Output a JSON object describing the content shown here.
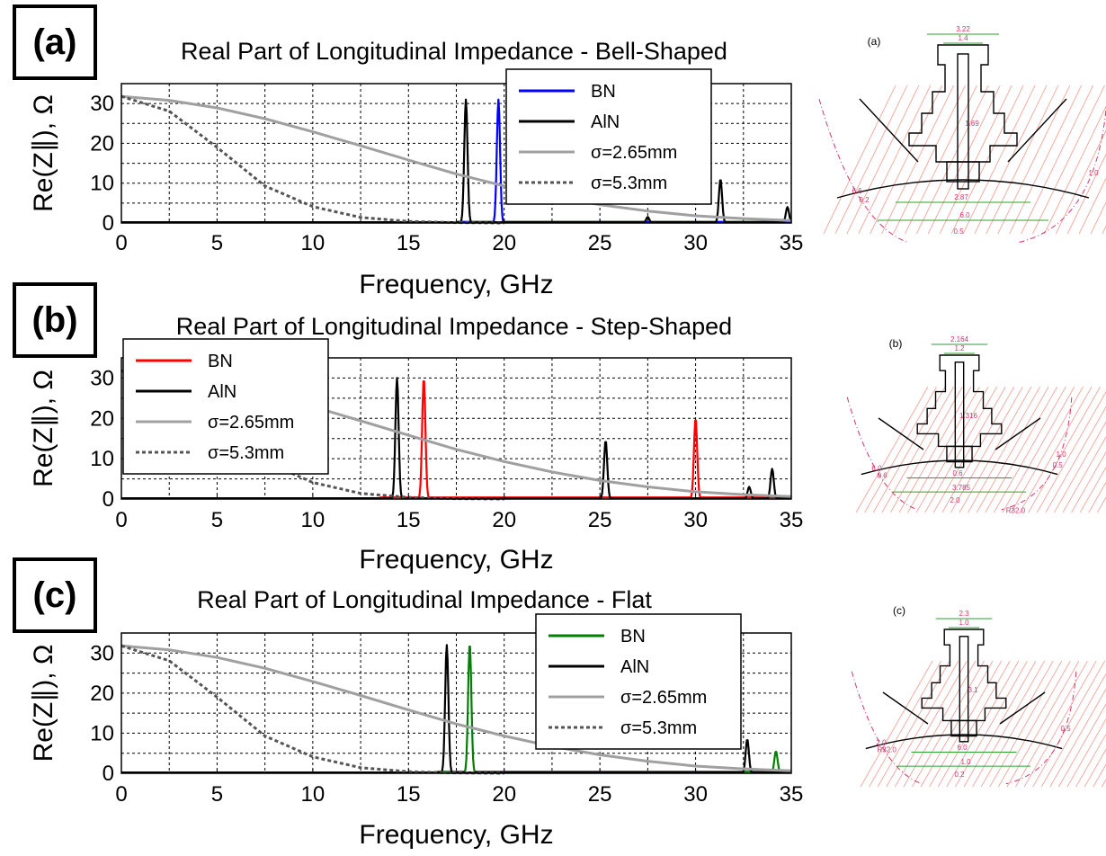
{
  "chart_data": [
    {
      "type": "line",
      "panel_label": "(a)",
      "title": "Real Part of Longitudinal Impedance - Bell-Shaped",
      "xlabel": "Frequency, GHz",
      "ylabel": "Re(Z∥), Ω",
      "xlim": [
        0,
        35
      ],
      "ylim": [
        0,
        35
      ],
      "xticks": [
        0,
        5,
        10,
        15,
        20,
        25,
        30,
        35
      ],
      "yticks": [
        0,
        10,
        20,
        30
      ],
      "grid": true,
      "legend_position": "top-right",
      "legend": [
        "BN",
        "AlN",
        "σ=2.65mm",
        "σ=5.3mm"
      ],
      "series": [
        {
          "name": "BN",
          "color": "#0000ff",
          "style": "solid",
          "peaks": [
            {
              "f": 19.7,
              "h": 31
            }
          ],
          "baseline": 0.3,
          "range": [
            17.5,
            35
          ]
        },
        {
          "name": "AlN",
          "color": "#000000",
          "style": "solid",
          "peaks": [
            {
              "f": 18.0,
              "h": 31
            },
            {
              "f": 27.5,
              "h": 1.5
            },
            {
              "f": 31.3,
              "h": 11
            },
            {
              "f": 34.8,
              "h": 4
            }
          ],
          "baseline": 0.2,
          "range": [
            0,
            35
          ]
        },
        {
          "name": "σ=2.65mm",
          "color": "#a0a0a0",
          "style": "solid",
          "x": [
            0,
            2.5,
            5,
            7.5,
            10,
            12.5,
            15,
            17.5,
            20,
            22.5,
            25,
            27.5,
            30,
            32.5,
            35
          ],
          "y": [
            31.8,
            30.8,
            28.9,
            26.2,
            22.9,
            19.4,
            15.8,
            12.3,
            9.3,
            6.7,
            4.6,
            3.0,
            1.8,
            1.1,
            0.6
          ]
        },
        {
          "name": "σ=5.3mm",
          "color": "#555555",
          "style": "dotted",
          "x": [
            0,
            2.5,
            5,
            7.5,
            10,
            12.5,
            15,
            17.5,
            20
          ],
          "y": [
            31.8,
            28.1,
            19.0,
            9.3,
            4.1,
            1.4,
            0.4,
            0.1,
            0.0
          ]
        }
      ]
    },
    {
      "type": "line",
      "panel_label": "(b)",
      "title": "Real Part of Longitudinal Impedance - Step-Shaped",
      "xlabel": "Frequency, GHz",
      "ylabel": "Re(Z∥), Ω",
      "xlim": [
        0,
        35
      ],
      "ylim": [
        0,
        35
      ],
      "xticks": [
        0,
        5,
        10,
        15,
        20,
        25,
        30,
        35
      ],
      "yticks": [
        0,
        10,
        20,
        30
      ],
      "grid": true,
      "legend_position": "top-left",
      "legend": [
        "BN",
        "AlN",
        "σ=2.65mm",
        "σ=5.3mm"
      ],
      "series": [
        {
          "name": "BN",
          "color": "#ff0000",
          "style": "solid",
          "peaks": [
            {
              "f": 15.8,
              "h": 30
            },
            {
              "f": 30.0,
              "h": 20
            }
          ],
          "baseline": 0.4,
          "range": [
            13.5,
            35
          ]
        },
        {
          "name": "AlN",
          "color": "#000000",
          "style": "solid",
          "peaks": [
            {
              "f": 14.4,
              "h": 30
            },
            {
              "f": 25.3,
              "h": 14.5
            },
            {
              "f": 32.8,
              "h": 3
            },
            {
              "f": 34.0,
              "h": 7.5
            }
          ],
          "baseline": 0.2,
          "range": [
            0,
            35
          ]
        },
        {
          "name": "σ=2.65mm",
          "color": "#a0a0a0",
          "style": "solid",
          "x": [
            0,
            2.5,
            5,
            7.5,
            10,
            12.5,
            15,
            17.5,
            20,
            22.5,
            25,
            27.5,
            30,
            32.5,
            35
          ],
          "y": [
            31.8,
            30.8,
            28.9,
            26.2,
            22.9,
            19.4,
            15.8,
            12.3,
            9.3,
            6.7,
            4.6,
            3.0,
            1.8,
            1.1,
            0.6
          ]
        },
        {
          "name": "σ=5.3mm",
          "color": "#555555",
          "style": "dotted",
          "x": [
            0,
            2.5,
            5,
            7.5,
            10,
            12.5,
            15,
            17.5,
            20
          ],
          "y": [
            31.8,
            28.1,
            19.0,
            9.3,
            4.1,
            1.4,
            0.4,
            0.1,
            0.0
          ]
        }
      ]
    },
    {
      "type": "line",
      "panel_label": "(c)",
      "title": "Real Part of Longitudinal Impedance - Flat",
      "xlabel": "Frequency, GHz",
      "ylabel": "Re(Z∥), Ω",
      "xlim": [
        0,
        35
      ],
      "ylim": [
        0,
        35
      ],
      "xticks": [
        0,
        5,
        10,
        15,
        20,
        25,
        30,
        35
      ],
      "yticks": [
        0,
        10,
        20,
        30
      ],
      "grid": true,
      "legend_position": "top-right",
      "legend": [
        "BN",
        "AlN",
        "σ=2.65mm",
        "σ=5.3mm"
      ],
      "series": [
        {
          "name": "BN",
          "color": "#008000",
          "style": "solid",
          "peaks": [
            {
              "f": 18.2,
              "h": 32.5
            },
            {
              "f": 34.2,
              "h": 5.5
            }
          ],
          "baseline": 0.4,
          "range": [
            16.5,
            35
          ]
        },
        {
          "name": "AlN",
          "color": "#000000",
          "style": "solid",
          "peaks": [
            {
              "f": 17.0,
              "h": 32
            },
            {
              "f": 32.7,
              "h": 8.5
            }
          ],
          "baseline": 0.2,
          "range": [
            0,
            35
          ]
        },
        {
          "name": "σ=2.65mm",
          "color": "#a0a0a0",
          "style": "solid",
          "x": [
            0,
            2.5,
            5,
            7.5,
            10,
            12.5,
            15,
            17.5,
            20,
            22.5,
            25,
            27.5,
            30,
            32.5,
            35
          ],
          "y": [
            31.8,
            30.8,
            28.9,
            26.2,
            22.9,
            19.4,
            15.8,
            12.3,
            9.3,
            6.7,
            4.6,
            3.0,
            1.8,
            1.1,
            0.6
          ]
        },
        {
          "name": "σ=5.3mm",
          "color": "#555555",
          "style": "dotted",
          "x": [
            0,
            2.5,
            5,
            7.5,
            10,
            12.5,
            15,
            17.5,
            20
          ],
          "y": [
            31.8,
            28.1,
            19.0,
            9.3,
            4.1,
            1.4,
            0.4,
            0.1,
            0.0
          ]
        }
      ]
    }
  ],
  "drawings": [
    {
      "label": "(a)",
      "dims": [
        "3.22",
        "1.4",
        "1.69",
        "2.87",
        "6.0",
        "6.6",
        "1.0",
        "0.5",
        "0.2"
      ]
    },
    {
      "label": "(b)",
      "dims": [
        "2.164",
        "1.2",
        "1.316",
        "0.6",
        "3.785",
        "6.0",
        "1.0",
        "2.0",
        "0.6",
        "0.5",
        "R32.0"
      ]
    },
    {
      "label": "(c)",
      "dims": [
        "2.3",
        "1.0",
        "3.1",
        "6.0",
        "1.0",
        "2.0",
        "0.5",
        "0.2",
        "R32.0"
      ]
    }
  ]
}
